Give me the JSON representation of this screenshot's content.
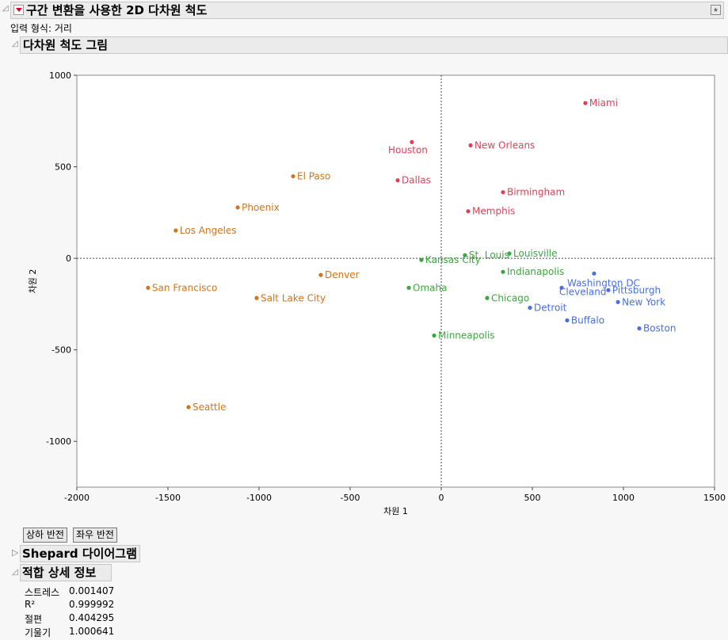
{
  "report": {
    "title": "구간 변환을 사용한 2D 다차원 척도",
    "input_format": "입력 형식: 거리"
  },
  "plot_section": {
    "title": "다차원 척도 그림"
  },
  "buttons": {
    "flip_vertical": "상하 반전",
    "flip_horizontal": "좌우 반전"
  },
  "shepard": {
    "title": "Shepard 다이어그램"
  },
  "fit": {
    "title": "적합 상세 정보",
    "rows": [
      {
        "label": "스트레스",
        "value": "0.001407"
      },
      {
        "label": "R²",
        "value": "0.999992"
      },
      {
        "label": "절편",
        "value": "0.404295"
      },
      {
        "label": "기울기",
        "value": "1.000641"
      }
    ]
  },
  "chart_data": {
    "type": "scatter",
    "xlabel": "차원 1",
    "ylabel": "차원 2",
    "xlim": [
      -2000,
      1500
    ],
    "ylim": [
      -1250,
      1000
    ],
    "xticks": [
      -2000,
      -1500,
      -1000,
      -500,
      0,
      500,
      1000,
      1500
    ],
    "yticks": [
      -1000,
      -500,
      0,
      500,
      1000
    ],
    "reference_lines": {
      "x": 0,
      "y": 0
    },
    "colors": {
      "red": "#d9435a",
      "orange": "#d0741e",
      "green": "#3aa83e",
      "blue": "#4a6fe0"
    },
    "points": [
      {
        "name": "Miami",
        "x": 791,
        "y": 848,
        "group": "red"
      },
      {
        "name": "Houston",
        "x": -161,
        "y": 635,
        "group": "red"
      },
      {
        "name": "New Orleans",
        "x": 161,
        "y": 617,
        "group": "red"
      },
      {
        "name": "Dallas",
        "x": -239,
        "y": 426,
        "group": "red"
      },
      {
        "name": "Birmingham",
        "x": 339,
        "y": 361,
        "group": "red"
      },
      {
        "name": "Memphis",
        "x": 148,
        "y": 257,
        "group": "red"
      },
      {
        "name": "El Paso",
        "x": -813,
        "y": 448,
        "group": "orange"
      },
      {
        "name": "Phoenix",
        "x": -1117,
        "y": 278,
        "group": "orange"
      },
      {
        "name": "Los Angeles",
        "x": -1457,
        "y": 152,
        "group": "orange"
      },
      {
        "name": "Denver",
        "x": -661,
        "y": -91,
        "group": "orange"
      },
      {
        "name": "San Francisco",
        "x": -1609,
        "y": -161,
        "group": "orange"
      },
      {
        "name": "Salt Lake City",
        "x": -1013,
        "y": -217,
        "group": "orange"
      },
      {
        "name": "Seattle",
        "x": -1387,
        "y": -813,
        "group": "orange"
      },
      {
        "name": "Louisville",
        "x": 374,
        "y": 26,
        "group": "green"
      },
      {
        "name": "St. Louis",
        "x": 130,
        "y": 17,
        "group": "green"
      },
      {
        "name": "Kansas City",
        "x": -109,
        "y": -9,
        "group": "green"
      },
      {
        "name": "Indianapolis",
        "x": 339,
        "y": -74,
        "group": "green"
      },
      {
        "name": "Omaha",
        "x": -178,
        "y": -161,
        "group": "green"
      },
      {
        "name": "Chicago",
        "x": 252,
        "y": -217,
        "group": "green"
      },
      {
        "name": "Minneapolis",
        "x": -39,
        "y": -422,
        "group": "green"
      },
      {
        "name": "Washington DC",
        "x": 839,
        "y": -83,
        "group": "blue"
      },
      {
        "name": "Cleveland",
        "x": 661,
        "y": -161,
        "group": "blue"
      },
      {
        "name": "Pittsburgh",
        "x": 917,
        "y": -174,
        "group": "blue"
      },
      {
        "name": "New York",
        "x": 970,
        "y": -239,
        "group": "blue"
      },
      {
        "name": "Detroit",
        "x": 487,
        "y": -270,
        "group": "blue"
      },
      {
        "name": "Buffalo",
        "x": 691,
        "y": -339,
        "group": "blue"
      },
      {
        "name": "Boston",
        "x": 1087,
        "y": -383,
        "group": "blue"
      }
    ]
  }
}
